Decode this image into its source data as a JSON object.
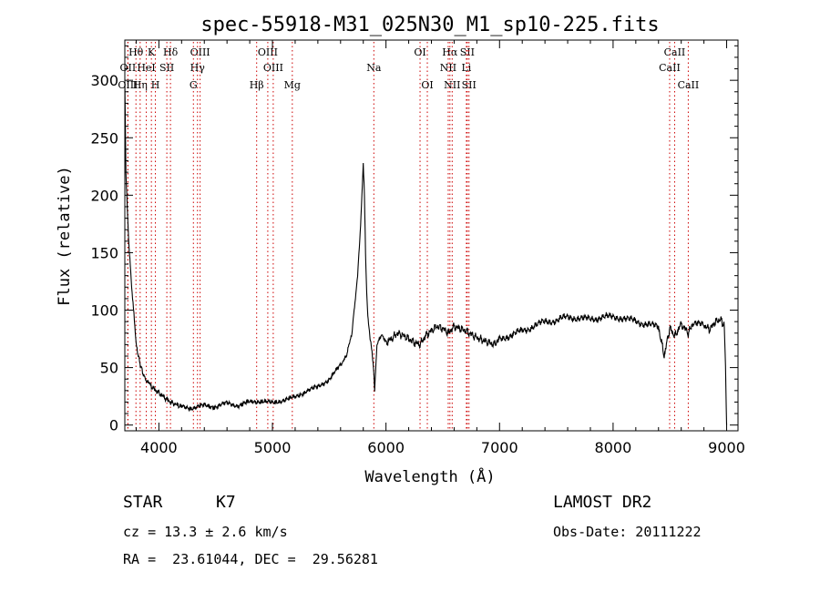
{
  "chart_data": {
    "type": "line",
    "title": "spec-55918-M31_025N30_M1_sp10-225.fits",
    "xlabel": "Wavelength (Å)",
    "ylabel": "Flux (relative)",
    "xlim": [
      3700,
      9100
    ],
    "ylim": [
      -5,
      335
    ],
    "xticks": [
      4000,
      5000,
      6000,
      7000,
      8000,
      9000
    ],
    "yticks": [
      0,
      50,
      100,
      150,
      200,
      250,
      300
    ],
    "grid": false,
    "line_color": "#000000",
    "marker_color": "#cc0000",
    "series": [
      {
        "x": [
          3700,
          3710,
          3725,
          3740,
          3760,
          3780,
          3800,
          3830,
          3860,
          3900,
          3950,
          4000,
          4050,
          4100,
          4150,
          4200,
          4300,
          4400,
          4500,
          4600,
          4700,
          4800,
          4900,
          5000,
          5100,
          5200,
          5300,
          5400,
          5500,
          5600,
          5650,
          5700,
          5750,
          5780,
          5800,
          5810,
          5820,
          5830,
          5840,
          5850,
          5860,
          5870,
          5880,
          5890,
          5900,
          5920,
          5960,
          6000,
          6050,
          6100,
          6150,
          6200,
          6250,
          6300,
          6350,
          6400,
          6450,
          6500,
          6550,
          6600,
          6650,
          6700,
          6750,
          6800,
          6850,
          6900,
          6950,
          7000,
          7100,
          7200,
          7300,
          7400,
          7500,
          7600,
          7700,
          7800,
          7900,
          8000,
          8100,
          8200,
          8300,
          8400,
          8450,
          8500,
          8542,
          8600,
          8662,
          8700,
          8800,
          8850,
          8900,
          8950,
          8980,
          8990,
          9000
        ],
        "y": [
          300,
          220,
          180,
          150,
          120,
          95,
          70,
          55,
          45,
          38,
          32,
          28,
          24,
          20,
          18,
          16,
          15,
          17,
          16,
          19,
          17,
          20,
          21,
          19,
          22,
          24,
          30,
          33,
          40,
          52,
          60,
          80,
          130,
          180,
          228,
          200,
          150,
          115,
          95,
          85,
          75,
          70,
          60,
          50,
          30,
          70,
          78,
          72,
          75,
          80,
          78,
          75,
          72,
          70,
          78,
          82,
          86,
          84,
          80,
          86,
          84,
          82,
          79,
          76,
          74,
          72,
          70,
          75,
          78,
          82,
          86,
          90,
          91,
          94,
          93,
          92,
          94,
          94,
          93,
          90,
          88,
          85,
          60,
          85,
          77,
          88,
          80,
          88,
          87,
          83,
          90,
          92,
          85,
          50,
          0
        ]
      }
    ],
    "line_markers": [
      {
        "label": "Hθ",
        "x": 3798,
        "row": 0
      },
      {
        "label": "K",
        "x": 3934,
        "row": 0
      },
      {
        "label": "Hδ",
        "x": 4102,
        "row": 0
      },
      {
        "label": "OIII",
        "x": 4363,
        "row": 0
      },
      {
        "label": "OIII",
        "x": 4959,
        "row": 0
      },
      {
        "label": "OI",
        "x": 6300,
        "row": 0
      },
      {
        "label": "Hα",
        "x": 6563,
        "row": 0
      },
      {
        "label": "SII",
        "x": 6716,
        "row": 0
      },
      {
        "label": "CaII",
        "x": 8542,
        "row": 0
      },
      {
        "label": "OII",
        "x": 3727,
        "row": 1
      },
      {
        "label": "HeI",
        "x": 3889,
        "row": 1
      },
      {
        "label": "SII",
        "x": 4070,
        "row": 1
      },
      {
        "label": "Hγ",
        "x": 4340,
        "row": 1
      },
      {
        "label": "OIII",
        "x": 5007,
        "row": 1
      },
      {
        "label": "Na",
        "x": 5893,
        "row": 1
      },
      {
        "label": "NII",
        "x": 6548,
        "row": 1
      },
      {
        "label": "Li",
        "x": 6708,
        "row": 1
      },
      {
        "label": "CaII",
        "x": 8498,
        "row": 1
      },
      {
        "label": "OIII",
        "x": 3727,
        "row": 2
      },
      {
        "label": "Hη",
        "x": 3835,
        "row": 2
      },
      {
        "label": "H",
        "x": 3969,
        "row": 2
      },
      {
        "label": "G",
        "x": 4304,
        "row": 2
      },
      {
        "label": "Hβ",
        "x": 4861,
        "row": 2
      },
      {
        "label": "Mg",
        "x": 5175,
        "row": 2
      },
      {
        "label": "OI",
        "x": 6364,
        "row": 2
      },
      {
        "label": "NII",
        "x": 6583,
        "row": 2
      },
      {
        "label": "SII",
        "x": 6731,
        "row": 2
      },
      {
        "label": "CaII",
        "x": 8662,
        "row": 2
      }
    ]
  },
  "info": {
    "object_class": "STAR",
    "subclass": "K7",
    "survey": "LAMOST DR2",
    "redshift": "cz = 13.3 ± 2.6 km/s",
    "obs_date": "Obs-Date: 20111222",
    "coords": "RA =  23.61044, DEC =  29.56281"
  }
}
